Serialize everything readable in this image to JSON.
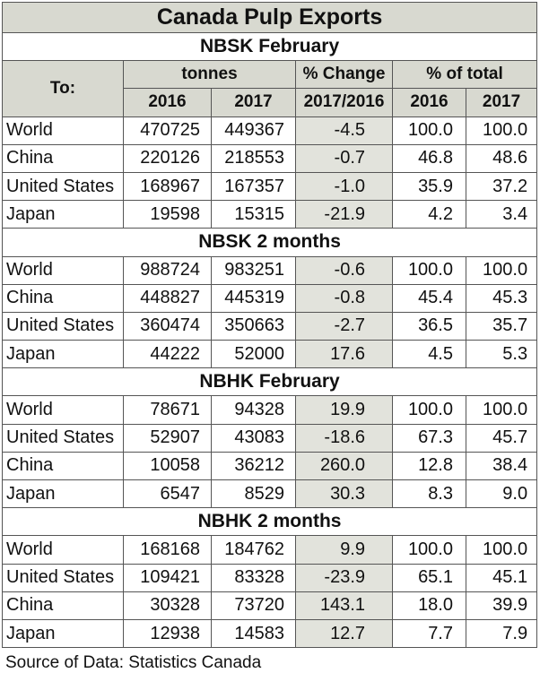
{
  "title": "Canada Pulp Exports",
  "header": {
    "to_label": "To:",
    "tonnes_label": "tonnes",
    "change_label": "% Change",
    "total_label": "% of total",
    "year_a": "2016",
    "year_b": "2017",
    "change_period": "2017/2016",
    "year_a2": "2016",
    "year_b2": "2017"
  },
  "sections": [
    {
      "name": "NBSK February",
      "rows": [
        {
          "dest": "World",
          "t2016": "470725",
          "t2017": "449367",
          "change": "-4.5",
          "p2016": "100.0",
          "p2017": "100.0"
        },
        {
          "dest": "China",
          "t2016": "220126",
          "t2017": "218553",
          "change": "-0.7",
          "p2016": "46.8",
          "p2017": "48.6"
        },
        {
          "dest": "United States",
          "t2016": "168967",
          "t2017": "167357",
          "change": "-1.0",
          "p2016": "35.9",
          "p2017": "37.2"
        },
        {
          "dest": "Japan",
          "t2016": "19598",
          "t2017": "15315",
          "change": "-21.9",
          "p2016": "4.2",
          "p2017": "3.4"
        }
      ]
    },
    {
      "name": "NBSK 2 months",
      "rows": [
        {
          "dest": "World",
          "t2016": "988724",
          "t2017": "983251",
          "change": "-0.6",
          "p2016": "100.0",
          "p2017": "100.0"
        },
        {
          "dest": "China",
          "t2016": "448827",
          "t2017": "445319",
          "change": "-0.8",
          "p2016": "45.4",
          "p2017": "45.3"
        },
        {
          "dest": "United States",
          "t2016": "360474",
          "t2017": "350663",
          "change": "-2.7",
          "p2016": "36.5",
          "p2017": "35.7"
        },
        {
          "dest": "Japan",
          "t2016": "44222",
          "t2017": "52000",
          "change": "17.6",
          "p2016": "4.5",
          "p2017": "5.3"
        }
      ]
    },
    {
      "name": "NBHK February",
      "rows": [
        {
          "dest": "World",
          "t2016": "78671",
          "t2017": "94328",
          "change": "19.9",
          "p2016": "100.0",
          "p2017": "100.0"
        },
        {
          "dest": "United States",
          "t2016": "52907",
          "t2017": "43083",
          "change": "-18.6",
          "p2016": "67.3",
          "p2017": "45.7"
        },
        {
          "dest": "China",
          "t2016": "10058",
          "t2017": "36212",
          "change": "260.0",
          "p2016": "12.8",
          "p2017": "38.4"
        },
        {
          "dest": "Japan",
          "t2016": "6547",
          "t2017": "8529",
          "change": "30.3",
          "p2016": "8.3",
          "p2017": "9.0"
        }
      ]
    },
    {
      "name": "NBHK 2 months",
      "rows": [
        {
          "dest": "World",
          "t2016": "168168",
          "t2017": "184762",
          "change": "9.9",
          "p2016": "100.0",
          "p2017": "100.0"
        },
        {
          "dest": "United States",
          "t2016": "109421",
          "t2017": "83328",
          "change": "-23.9",
          "p2016": "65.1",
          "p2017": "45.1"
        },
        {
          "dest": "China",
          "t2016": "30328",
          "t2017": "73720",
          "change": "143.1",
          "p2016": "18.0",
          "p2017": "39.9"
        },
        {
          "dest": "Japan",
          "t2016": "12938",
          "t2017": "14583",
          "change": "12.7",
          "p2016": "7.7",
          "p2017": "7.9"
        }
      ]
    }
  ],
  "source": "Source of Data: Statistics Canada"
}
